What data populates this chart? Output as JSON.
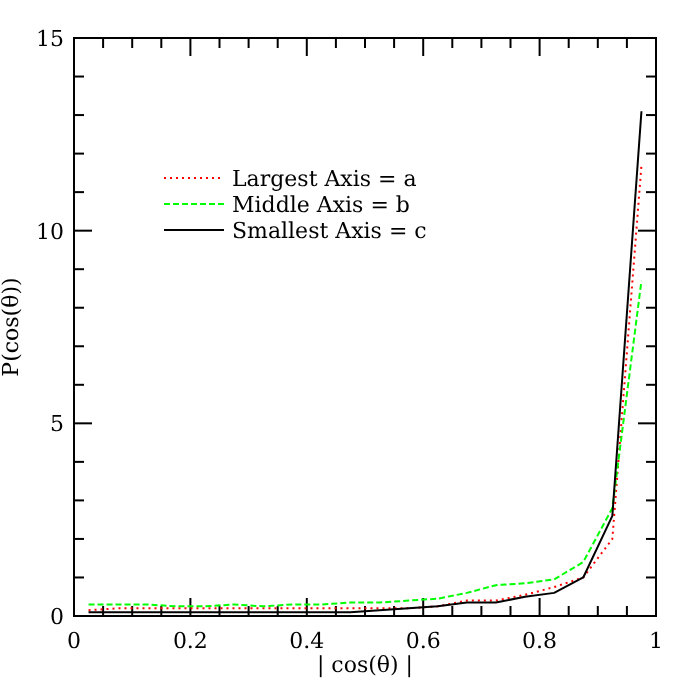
{
  "chart_data": {
    "type": "line",
    "xlabel": "| cos(θ) |",
    "ylabel": "P(cos(θ))",
    "x": [
      0.025,
      0.075,
      0.125,
      0.175,
      0.225,
      0.275,
      0.325,
      0.375,
      0.425,
      0.475,
      0.525,
      0.575,
      0.625,
      0.675,
      0.725,
      0.775,
      0.825,
      0.875,
      0.925,
      0.975
    ],
    "series": [
      {
        "name": "Largest Axis = a",
        "color": "#ff0000",
        "line_style": "dotted",
        "values": [
          0.15,
          0.2,
          0.2,
          0.2,
          0.2,
          0.2,
          0.2,
          0.2,
          0.2,
          0.2,
          0.2,
          0.2,
          0.25,
          0.4,
          0.4,
          0.55,
          0.75,
          1.0,
          2.0,
          11.7
        ]
      },
      {
        "name": "Middle Axis = b",
        "color": "#00ff00",
        "line_style": "dashed",
        "values": [
          0.3,
          0.3,
          0.3,
          0.25,
          0.25,
          0.3,
          0.25,
          0.3,
          0.3,
          0.35,
          0.35,
          0.4,
          0.45,
          0.6,
          0.8,
          0.85,
          0.95,
          1.4,
          2.8,
          8.7
        ]
      },
      {
        "name": "Smallest Axis = c",
        "color": "#000000",
        "line_style": "solid",
        "values": [
          0.1,
          0.1,
          0.1,
          0.1,
          0.1,
          0.1,
          0.1,
          0.1,
          0.1,
          0.1,
          0.15,
          0.2,
          0.25,
          0.35,
          0.35,
          0.5,
          0.6,
          1.0,
          2.6,
          13.1
        ]
      }
    ],
    "xlim": [
      0,
      1
    ],
    "ylim": [
      0,
      15
    ],
    "xticks": [
      0,
      {
        "value": 0.05,
        "label": null
      },
      {
        "value": 0.1,
        "label": null
      },
      {
        "value": 0.15,
        "label": null
      },
      0.2,
      {
        "value": 0.25,
        "label": null
      },
      {
        "value": 0.3,
        "label": null
      },
      {
        "value": 0.35,
        "label": null
      },
      0.4,
      {
        "value": 0.45,
        "label": null
      },
      {
        "value": 0.5,
        "label": null
      },
      {
        "value": 0.55,
        "label": null
      },
      0.6,
      {
        "value": 0.65,
        "label": null
      },
      {
        "value": 0.7,
        "label": null
      },
      {
        "value": 0.75,
        "label": null
      },
      0.8,
      {
        "value": 0.85,
        "label": null
      },
      {
        "value": 0.9,
        "label": null
      },
      {
        "value": 0.95,
        "label": null
      },
      1
    ],
    "yticks": [
      0,
      {
        "value": 1,
        "label": null
      },
      {
        "value": 2,
        "label": null
      },
      {
        "value": 3,
        "label": null
      },
      {
        "value": 4,
        "label": null
      },
      5,
      {
        "value": 6,
        "label": null
      },
      {
        "value": 7,
        "label": null
      },
      {
        "value": 8,
        "label": null
      },
      {
        "value": 9,
        "label": null
      },
      10,
      {
        "value": 11,
        "label": null
      },
      {
        "value": 12,
        "label": null
      },
      {
        "value": 13,
        "label": null
      },
      {
        "value": 14,
        "label": null
      },
      15
    ],
    "legend": "top left",
    "marker": "none"
  }
}
